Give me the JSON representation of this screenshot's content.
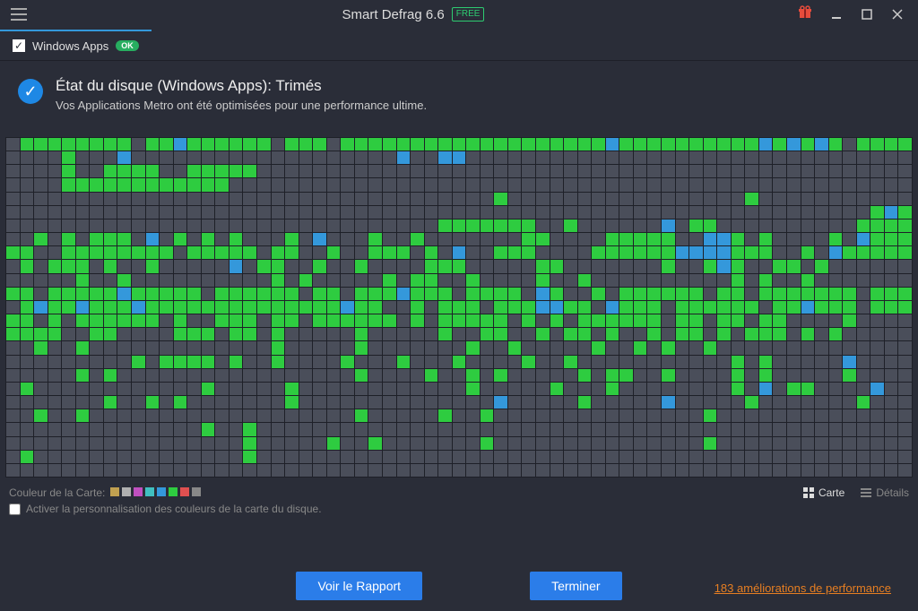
{
  "app": {
    "title": "Smart Defrag 6.6",
    "edition_badge": "FREE"
  },
  "window_controls": {
    "gift": "gift",
    "minimize": "minimize",
    "maximize": "maximize",
    "close": "close"
  },
  "tab": {
    "label": "Windows Apps",
    "checked": true,
    "status_badge": "OK"
  },
  "status": {
    "title": "État du disque (Windows Apps): Trimés",
    "subtitle": "Vos Applications Metro ont été optimisées pour une performance ultime."
  },
  "disk_map": {
    "cols": 65,
    "rows": 25,
    "cell_colors": {
      "empty": "#4a4e5a",
      "green": "#2ecc40",
      "blue": "#3498db"
    },
    "background": "#1e2028",
    "rows_data": [
      ".GGGGGGGG.GGBGGGGGG.GGG.GGGGGGGGGGGGGGGGGGGBGGGGGGGGGGBGBGBG.GGGG",
      "....G...B...................B..BB................................",
      "....G..GGGG..GGGGG...............................................",
      "....GGGGGGGGGGGG.................................................",
      "...................................G.................G...........",
      "..............................................................GBG",
      "...............................GGGGGGG..G......B.GG..........GGGG",
      "..G.G.GGG.B.G.G.G...G.B...G..G.......GG....GGGGG..BBG.G....G.BGGG",
      "GG..GGGGGGGG.GGGGG.GG..G..GGG.G.B..GGG....GGGGGGBBBBGGG..G.BGGGGG",
      ".G.GGG.G..G.....B.GG..G..G....GGG.....GG.......G..GBG..GG.G......",
      ".....G..G..........G.G.....G.GG..G....G..G..........G.G..G.......",
      "GG.GGGGGBGGGGG.GGGGGG.GG.GGGBGGG.GGGG.BG..G.GGGGGG.GG.GGGGGGG.GGG",
      ".GBGGBGGGBGGGGGGGGGGGGGGBGG..G.GGG.GGGBBGG.BGGG.GGGGGG.GGBGGG.GGG",
      "GG.G.GGGGGG.G..GGG.GG.GGGGGG.G.GGGGG.G.G.GGGGGG.GG.GG.GG....G....",
      "GGGG..GG....GGG.GG.G.....G.....G..GG..G.GG.G..G.GG.G.GGG.G.G.....",
      "..G..G.............G.....G.......G..G.....G..G.G..G..............",
      ".........G.GGGG.G..G....G...G...G....G..G...........G.G.....B....",
      ".....G.G.................G....G..G.G.....G.GG..G....G.G.....G....",
      ".G............G.....G............G.....G...G........G.B.GG....B..",
      ".......G..G.G.......G..............B.....G.....B.....G.......G...",
      "..G..G...................G.....G..G...............G..............",
      "..............G..G...............................................",
      ".................G.....G..G.......G...............G..............",
      ".G...............G...............................................",
      "................................................................."
    ]
  },
  "legend": {
    "label": "Couleur de la Carte:",
    "colors": [
      "#c0a050",
      "#b0b0b0",
      "#c050c0",
      "#40c0c0",
      "#3498db",
      "#2ecc40",
      "#e05050",
      "#888888"
    ]
  },
  "view_toggles": {
    "carte": "Carte",
    "details": "Détails"
  },
  "customize_checkbox": {
    "label": "Activer la personnalisation des couleurs de la carte du disque.",
    "checked": false
  },
  "buttons": {
    "report": "Voir le Rapport",
    "finish": "Terminer"
  },
  "perf_link": {
    "count": "183",
    "text": "améliorations de performance"
  }
}
